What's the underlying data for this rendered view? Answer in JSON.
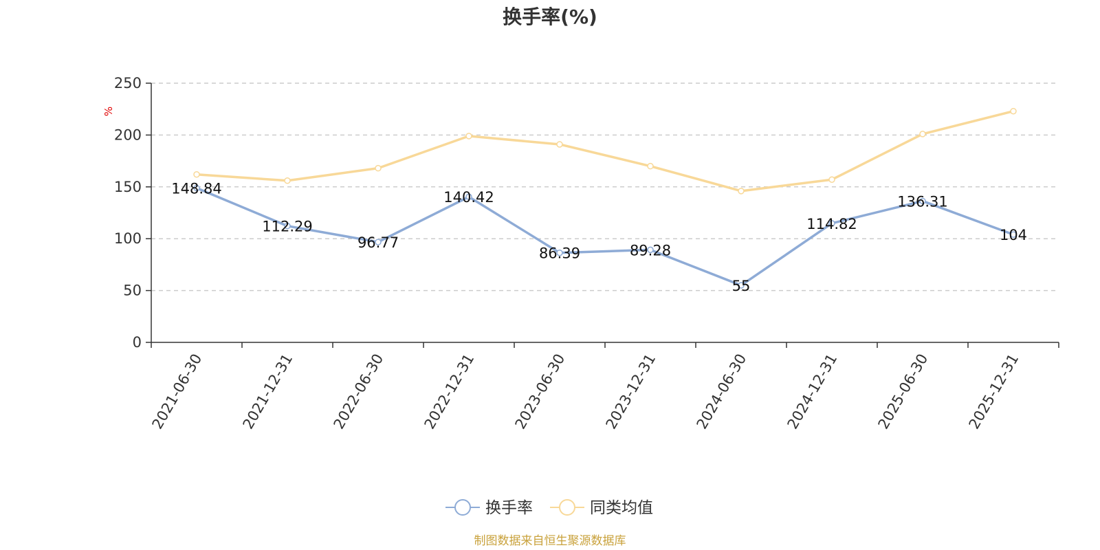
{
  "chart_data": {
    "type": "line",
    "title": "换手率(%)",
    "ylabel": "%",
    "xlabel": "",
    "ylim": [
      0,
      250
    ],
    "yticks": [
      0,
      50,
      100,
      150,
      200,
      250
    ],
    "categories": [
      "2021-06-30",
      "2021-12-31",
      "2022-06-30",
      "2022-12-31",
      "2023-06-30",
      "2023-12-31",
      "2024-06-30",
      "2024-12-31",
      "2025-06-30",
      "2025-12-31"
    ],
    "series": [
      {
        "name": "换手率",
        "color": "#8eabd6",
        "values": [
          148.84,
          112.29,
          96.77,
          140.42,
          86.39,
          89.28,
          55,
          114.82,
          136.31,
          104
        ],
        "labels": [
          "148.84",
          "112.29",
          "96.77",
          "140.42",
          "86.39",
          "89.28",
          "55",
          "114.82",
          "136.31",
          "104"
        ]
      },
      {
        "name": "同类均值",
        "color": "#f8d898",
        "values": [
          162,
          156,
          168,
          199,
          191,
          170,
          146,
          157,
          201,
          223
        ]
      }
    ],
    "grid": true,
    "legend": "bottom-center",
    "source": "制图数据来自恒生聚源数据库"
  }
}
